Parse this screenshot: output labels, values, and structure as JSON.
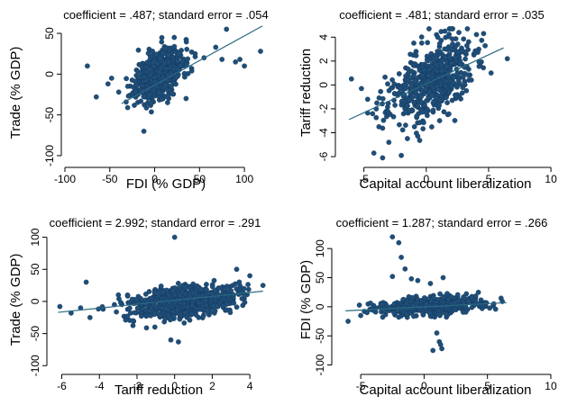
{
  "colors": {
    "marker": "#1f4e79",
    "marker_edge": "#0e2f4d",
    "fit_line": "#2a6a80",
    "axis": "#000000"
  },
  "chart_data": [
    {
      "type": "scatter",
      "title": "coefficient = .487; standard error = .054",
      "xlabel": "FDI (% GDP)",
      "ylabel": "Trade (% GDP)",
      "xlim": [
        -100,
        125
      ],
      "ylim": [
        -110,
        60
      ],
      "xticks": [
        -100,
        -50,
        0,
        50,
        100
      ],
      "yticks": [
        50,
        0,
        -50,
        -100
      ],
      "grid": false,
      "fit_line": {
        "x": [
          -37,
          120
        ],
        "y": [
          -36,
          59
        ]
      },
      "cloud": {
        "seed": 11,
        "n": 650,
        "cx": 5,
        "sx": 13,
        "cy": 0,
        "sy": 14,
        "slope": 0.487,
        "xlim": [
          -75,
          120
        ],
        "ylim": [
          -75,
          60
        ]
      },
      "outliers": [
        [
          -75,
          10
        ],
        [
          -65,
          -28
        ],
        [
          -52,
          -12
        ],
        [
          -40,
          -22
        ],
        [
          -30,
          -15
        ],
        [
          -48,
          -5
        ],
        [
          80,
          55
        ],
        [
          68,
          33
        ],
        [
          75,
          18
        ],
        [
          90,
          15
        ],
        [
          95,
          18
        ],
        [
          100,
          10
        ],
        [
          118,
          28
        ],
        [
          45,
          25
        ],
        [
          55,
          20
        ],
        [
          35,
          -30
        ],
        [
          -12,
          -70
        ]
      ]
    },
    {
      "type": "scatter",
      "title": "coefficient = .481; standard error = .035",
      "xlabel": "Capital account liberalization",
      "ylabel": "Tariff reduction",
      "xlim": [
        -7,
        10.5
      ],
      "ylim": [
        -6.6,
        5
      ],
      "xticks": [
        -5,
        0,
        5,
        10
      ],
      "yticks": [
        4,
        2,
        0,
        -2,
        -4,
        -6
      ],
      "grid": false,
      "fit_line": {
        "x": [
          -6.2,
          6.2
        ],
        "y": [
          -2.9,
          3.1
        ]
      },
      "cloud": {
        "seed": 23,
        "n": 560,
        "cx": 0.3,
        "sx": 1.7,
        "cy": 0.2,
        "sy": 1.5,
        "slope": 0.48,
        "xlim": [
          -6,
          6.5
        ],
        "ylim": [
          -6.3,
          4.7
        ]
      },
      "outliers": [
        [
          -6,
          0.5
        ],
        [
          -5.2,
          -0.3
        ],
        [
          -4.7,
          -1.2
        ],
        [
          -4.2,
          -5.7
        ],
        [
          -3.5,
          -6.1
        ],
        [
          -3.0,
          -4.8
        ],
        [
          -2.0,
          -5.9
        ],
        [
          4.6,
          4.3
        ],
        [
          5.2,
          1.0
        ],
        [
          6.5,
          2.2
        ],
        [
          2.0,
          4.7
        ],
        [
          -1.0,
          3.5
        ],
        [
          1.5,
          4.5
        ],
        [
          -3.8,
          -3.5
        ]
      ]
    },
    {
      "type": "scatter",
      "title": "coefficient = 2.992; standard error = .291",
      "xlabel": "Tariff reduction",
      "ylabel": "Trade (% GDP)",
      "xlim": [
        -6.6,
        5
      ],
      "ylim": [
        -108,
        105
      ],
      "xticks": [
        -6,
        -4,
        -2,
        0,
        2,
        4
      ],
      "yticks": [
        100,
        50,
        0,
        -50,
        -100
      ],
      "grid": false,
      "fit_line": {
        "x": [
          -6.2,
          4.7
        ],
        "y": [
          -17,
          16
        ]
      },
      "cloud": {
        "seed": 37,
        "n": 700,
        "cx": 0.5,
        "sx": 1.4,
        "cy": 0,
        "sy": 12,
        "slope": 3.0,
        "xlim": [
          -6.2,
          4.8
        ],
        "ylim": [
          -65,
          60
        ]
      },
      "outliers": [
        [
          -6.1,
          -8
        ],
        [
          -5.5,
          -18
        ],
        [
          -5.0,
          -10
        ],
        [
          -4.7,
          30
        ],
        [
          -4.5,
          -25
        ],
        [
          -3.8,
          -12
        ],
        [
          -3.2,
          -5
        ],
        [
          -2.2,
          -30
        ],
        [
          -2.5,
          10
        ],
        [
          0.0,
          100
        ],
        [
          3.3,
          50
        ],
        [
          4.0,
          40
        ],
        [
          4.7,
          25
        ],
        [
          0.2,
          -63
        ],
        [
          -0.2,
          -60
        ]
      ]
    },
    {
      "type": "scatter",
      "title": "coefficient = 1.287; standard error = .266",
      "xlabel": "Capital account liberalization",
      "ylabel": "FDI (% GDP)",
      "xlim": [
        -7,
        10.5
      ],
      "ylim": [
        -110,
        125
      ],
      "xticks": [
        -5,
        0,
        5,
        10
      ],
      "yticks": [
        100,
        50,
        0,
        -50,
        -100
      ],
      "grid": false,
      "fit_line": {
        "x": [
          -6.2,
          6.5
        ],
        "y": [
          -7,
          7
        ]
      },
      "cloud": {
        "seed": 53,
        "n": 650,
        "cx": 0.6,
        "sx": 2.0,
        "cy": 2,
        "sy": 7,
        "slope": 1.2,
        "xlim": [
          -6,
          6.5
        ],
        "ylim": [
          -30,
          35
        ]
      },
      "outliers": [
        [
          -2.5,
          120
        ],
        [
          -2.0,
          110
        ],
        [
          -1.8,
          85
        ],
        [
          -1.5,
          65
        ],
        [
          -2.5,
          52
        ],
        [
          -1.0,
          48
        ],
        [
          -0.5,
          45
        ],
        [
          1.5,
          50
        ],
        [
          0.5,
          40
        ],
        [
          1.0,
          -45
        ],
        [
          1.2,
          -60
        ],
        [
          1.4,
          -72
        ],
        [
          0.7,
          -75
        ],
        [
          1.3,
          -65
        ],
        [
          -6.0,
          -25
        ],
        [
          -5.0,
          -15
        ],
        [
          -4.5,
          -10
        ],
        [
          5.5,
          5
        ]
      ]
    }
  ]
}
